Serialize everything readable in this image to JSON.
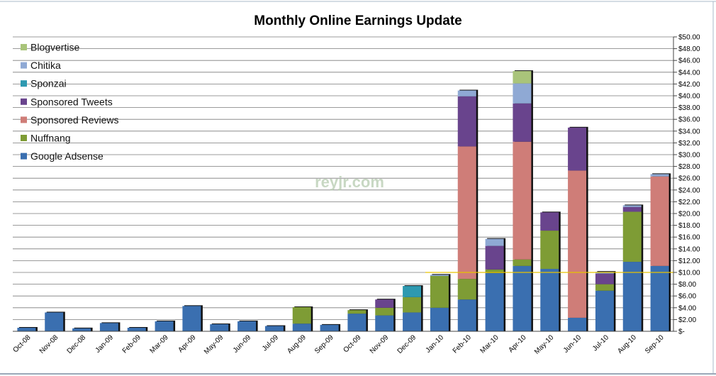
{
  "chart_data": {
    "type": "bar",
    "stacked": true,
    "title": "Monthly Online Earnings Update",
    "categories": [
      "Oct-08",
      "Nov-08",
      "Dec-08",
      "Jan-09",
      "Feb-09",
      "Mar-09",
      "Apr-09",
      "May-09",
      "Jun-09",
      "Jul-09",
      "Aug-09",
      "Sep-09",
      "Oct-09",
      "Nov-09",
      "Dec-09",
      "Jan-10",
      "Feb-10",
      "Mar-10",
      "Apr-10",
      "May-10",
      "Jun-10",
      "Jul-10",
      "Aug-10",
      "Sep-10"
    ],
    "series": [
      {
        "name": "Google Adsense",
        "color": "#3a6fb0",
        "values": [
          0.6,
          3.2,
          0.5,
          1.4,
          0.6,
          1.7,
          4.3,
          1.2,
          1.7,
          0.9,
          1.3,
          1.1,
          3.0,
          2.7,
          3.2,
          4.0,
          5.4,
          9.9,
          11.1,
          10.6,
          2.3,
          6.9,
          11.8,
          11.1
        ]
      },
      {
        "name": "Nuffnang",
        "color": "#7e9c35",
        "values": [
          0,
          0,
          0,
          0,
          0,
          0,
          0,
          0,
          0,
          0,
          2.8,
          0,
          0.6,
          1.3,
          2.6,
          5.4,
          3.5,
          0.6,
          1.1,
          6.5,
          0,
          1.1,
          8.5,
          0
        ]
      },
      {
        "name": "Sponsored Reviews",
        "color": "#cf7d78",
        "values": [
          0,
          0,
          0,
          0,
          0,
          0,
          0,
          0,
          0,
          0,
          0,
          0,
          0,
          0,
          0,
          0,
          22.5,
          0,
          20.0,
          0,
          25.0,
          0,
          0,
          15.2
        ]
      },
      {
        "name": "Sponsored Tweets",
        "color": "#69448d",
        "values": [
          0,
          0,
          0,
          0,
          0,
          0,
          0,
          0,
          0,
          0,
          0,
          0,
          0,
          1.4,
          0,
          0,
          8.5,
          4.0,
          6.5,
          3.1,
          7.3,
          1.8,
          0.8,
          0
        ]
      },
      {
        "name": "Sponzai",
        "color": "#2e99b0",
        "values": [
          0,
          0,
          0,
          0,
          0,
          0,
          0,
          0,
          0,
          0,
          0,
          0,
          0,
          0,
          1.9,
          0,
          0,
          0,
          0,
          0,
          0,
          0,
          0,
          0
        ]
      },
      {
        "name": "Chitika",
        "color": "#8fa9d4",
        "values": [
          0,
          0,
          0,
          0,
          0,
          0,
          0,
          0,
          0,
          0,
          0,
          0,
          0,
          0,
          0,
          0.2,
          1.0,
          1.2,
          3.4,
          0,
          0,
          0.3,
          0.3,
          0.4
        ]
      },
      {
        "name": "Blogvertise",
        "color": "#a9c47a",
        "values": [
          0,
          0,
          0,
          0,
          0,
          0,
          0,
          0,
          0,
          0,
          0,
          0,
          0,
          0,
          0,
          0,
          0,
          0,
          2.1,
          0,
          0,
          0,
          0,
          0
        ]
      }
    ],
    "legend_order": [
      "Blogvertise",
      "Chitika",
      "Sponzai",
      "Sponsored Tweets",
      "Sponsored Reviews",
      "Nuffnang",
      "Google Adsense"
    ],
    "legend_position": "top-left",
    "y_ticks": [
      "$-",
      "$2.00",
      "$4.00",
      "$6.00",
      "$8.00",
      "$10.00",
      "$12.00",
      "$14.00",
      "$16.00",
      "$18.00",
      "$20.00",
      "$22.00",
      "$24.00",
      "$26.00",
      "$28.00",
      "$30.00",
      "$32.00",
      "$34.00",
      "$36.00",
      "$38.00",
      "$40.00",
      "$42.00",
      "$44.00",
      "$46.00",
      "$48.00",
      "$50.00"
    ],
    "ylim": [
      0,
      50
    ],
    "y_axis_side": "right",
    "grid": true,
    "reference_line": {
      "value": 10,
      "color": "#e6c200"
    },
    "watermark": "reyjr.com",
    "xlabel": "",
    "ylabel": ""
  }
}
